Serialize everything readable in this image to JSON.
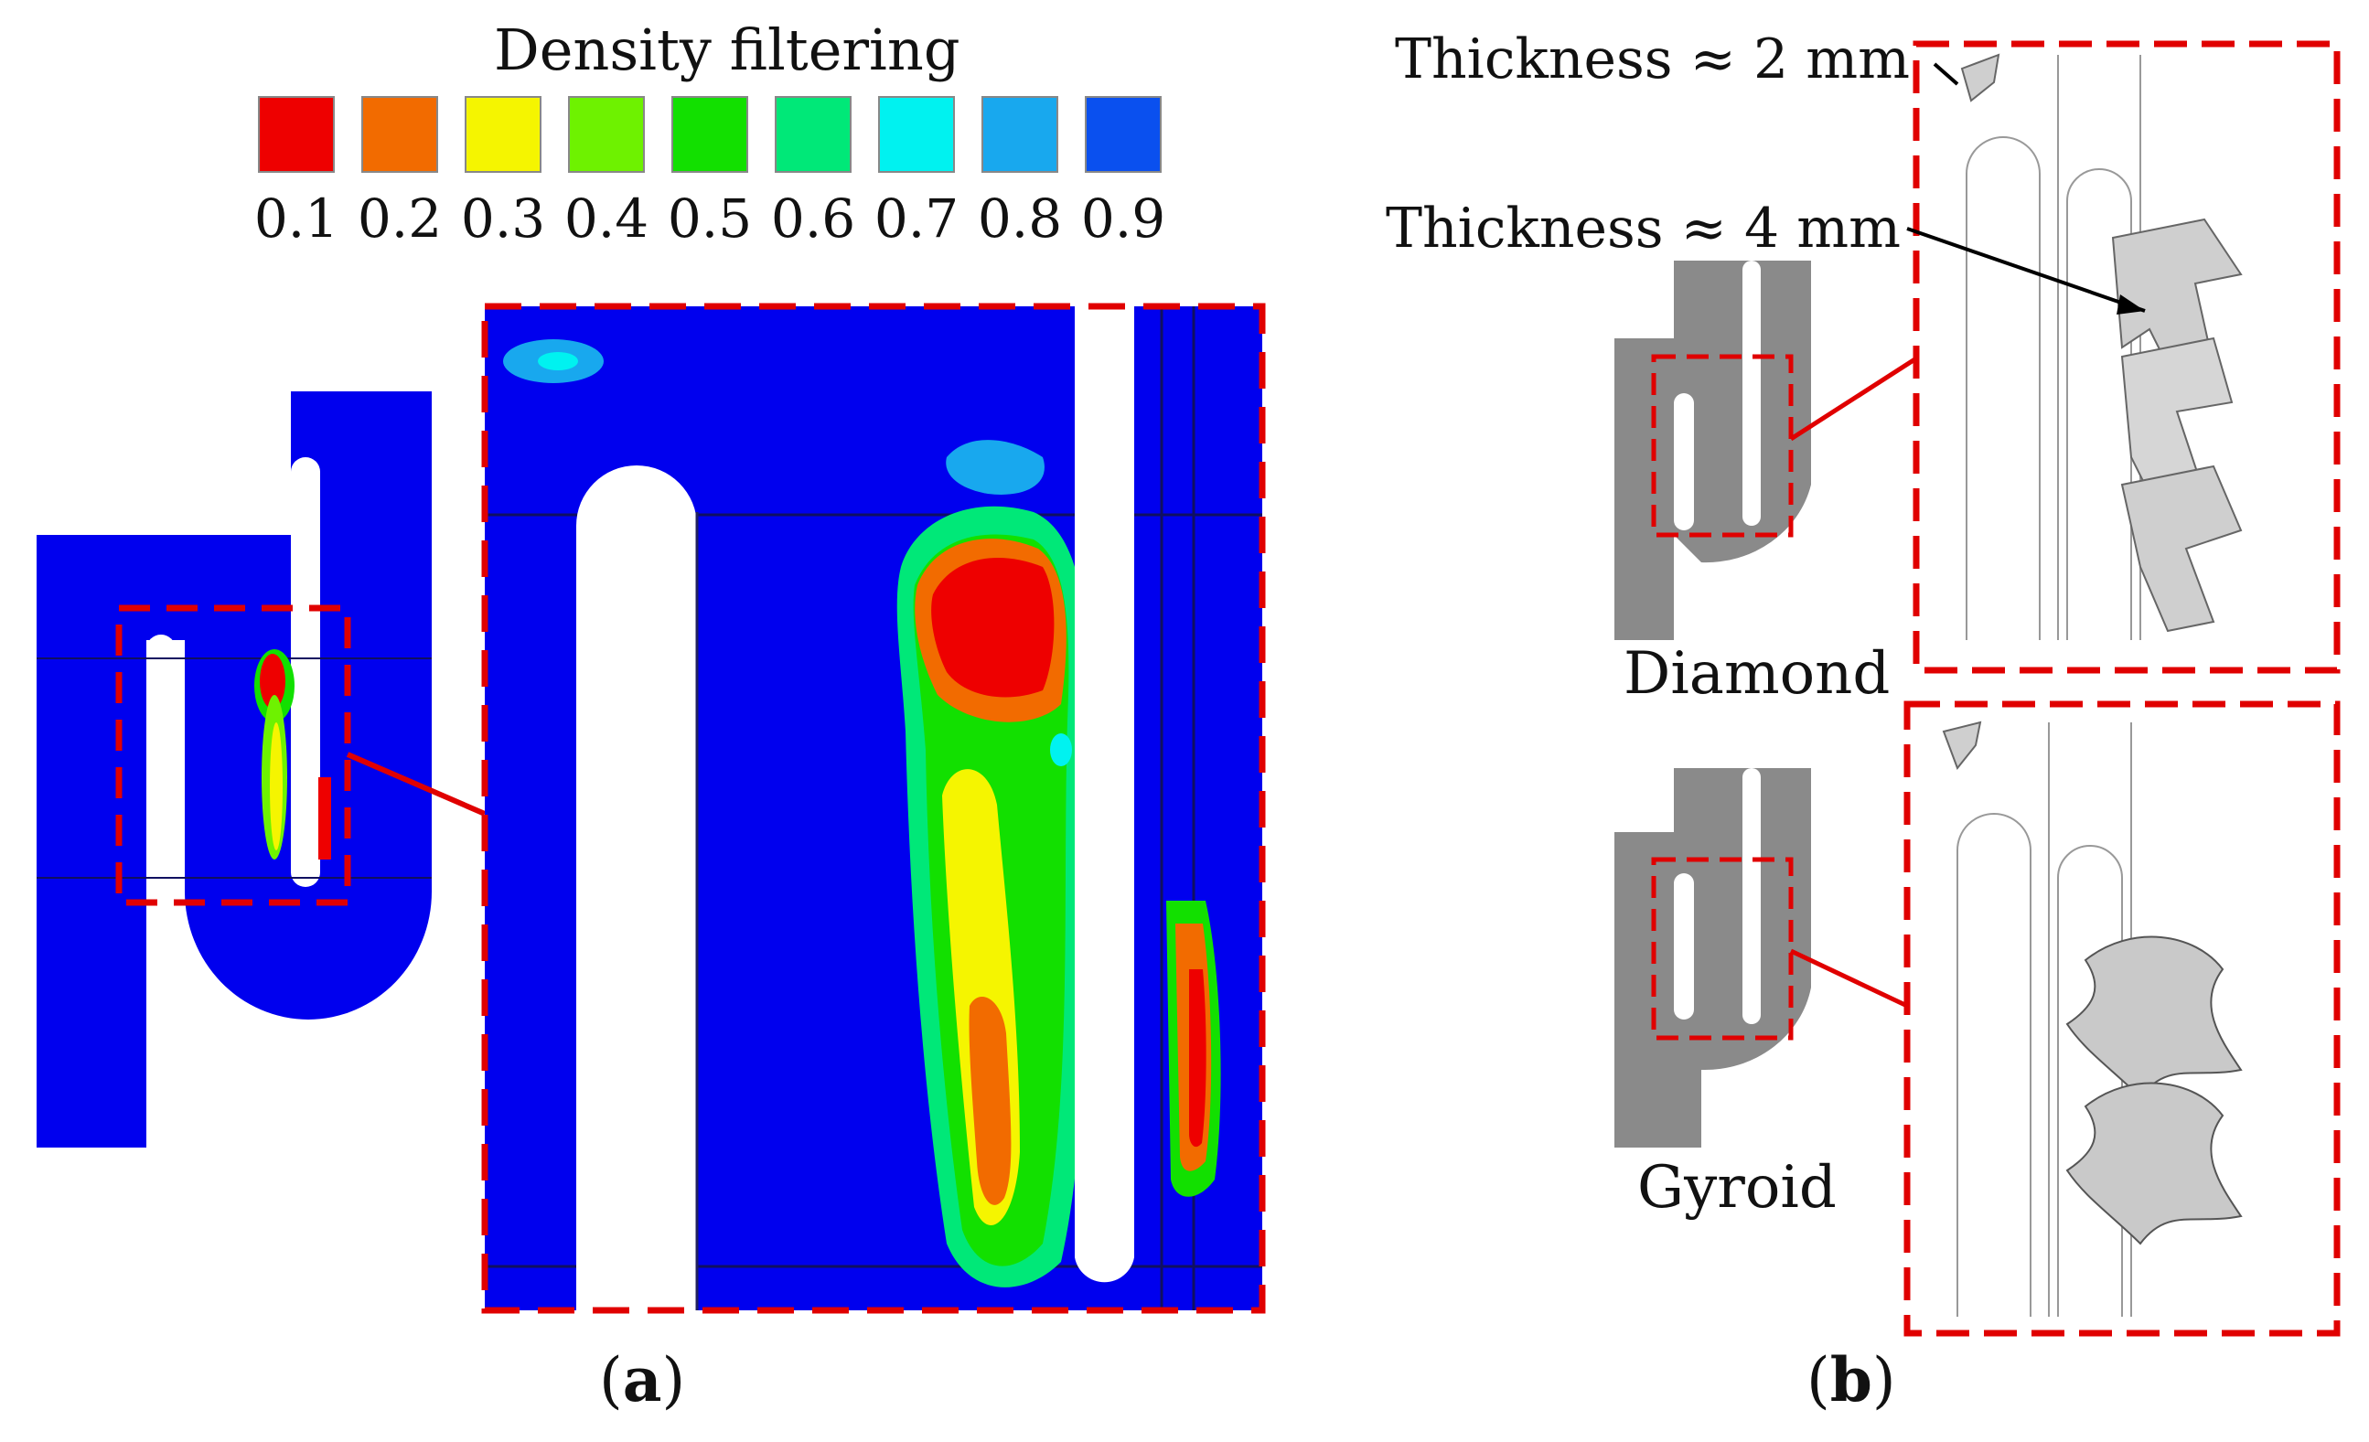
{
  "legend": {
    "title": "Density filtering",
    "entries": [
      {
        "label": "0.1",
        "color": "#ee0000"
      },
      {
        "label": "0.2",
        "color": "#f26b00"
      },
      {
        "label": "0.3",
        "color": "#f5f500"
      },
      {
        "label": "0.4",
        "color": "#6ef200"
      },
      {
        "label": "0.5",
        "color": "#12e000"
      },
      {
        "label": "0.6",
        "color": "#00e878"
      },
      {
        "label": "0.7",
        "color": "#00f2f0"
      },
      {
        "label": "0.8",
        "color": "#18a8ee"
      },
      {
        "label": "0.9",
        "color": "#0a50ef"
      }
    ]
  },
  "panel_a": {
    "caption_open": "(",
    "caption_letter": "a",
    "caption_close": ")"
  },
  "panel_b": {
    "caption_open": "(",
    "caption_letter": "b",
    "caption_close": ")",
    "annotation_2mm": "Thickness ≈ 2 mm",
    "annotation_4mm": "Thickness ≈ 4 mm",
    "lattice_1": "Diamond",
    "lattice_2": "Gyroid"
  },
  "colors": {
    "accent": "#e00000",
    "field": "#0000ee",
    "part_grey": "#8a8a8a"
  }
}
